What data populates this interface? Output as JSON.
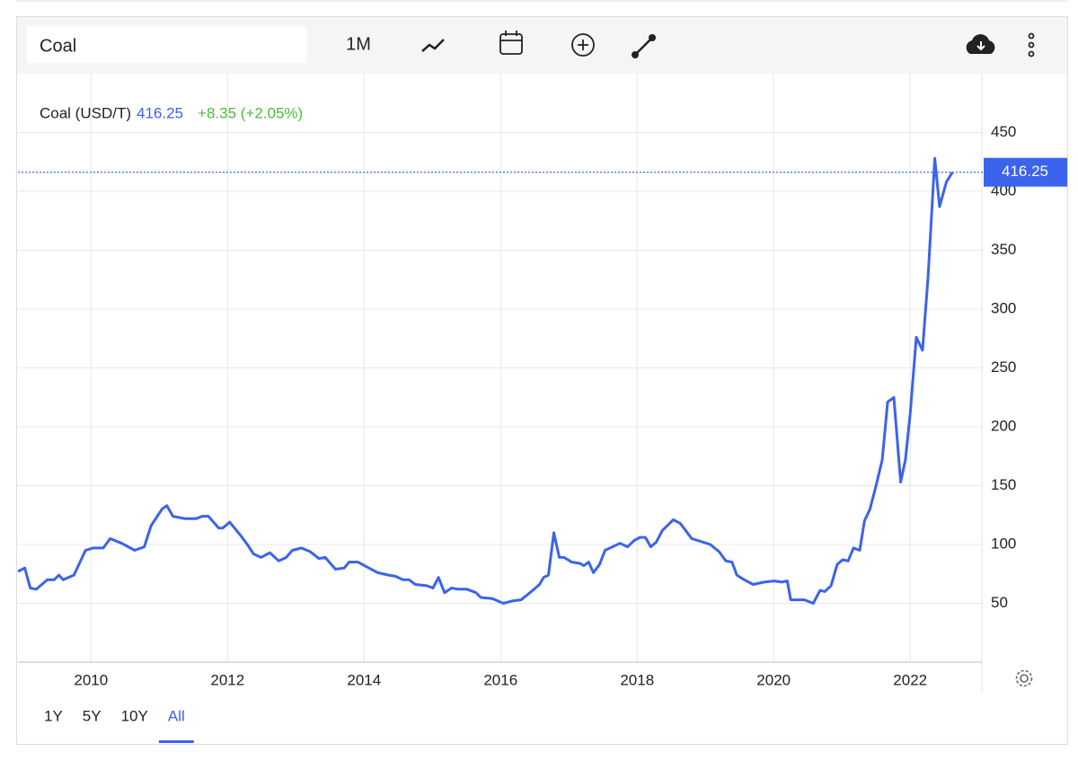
{
  "toolbar": {
    "symbol": "Coal",
    "interval": "1M"
  },
  "chart_data": {
    "type": "line",
    "change": "+8.35 (+2.05%)",
    "last_value": 416.25,
    "x": [
      2008.93,
      2009.03,
      2009.11,
      2009.2,
      2009.36,
      2009.46,
      2009.53,
      2009.59,
      2009.75,
      2009.92,
      2010.03,
      2010.18,
      2010.28,
      2010.45,
      2010.64,
      2010.78,
      2010.88,
      2011.04,
      2011.11,
      2011.2,
      2011.37,
      2011.54,
      2011.63,
      2011.72,
      2011.87,
      2011.93,
      2012.03,
      2012.2,
      2012.29,
      2012.38,
      2012.49,
      2012.62,
      2012.75,
      2012.86,
      2012.95,
      2013.08,
      2013.21,
      2013.34,
      2013.43,
      2013.58,
      2013.71,
      2013.78,
      2013.91,
      2014.07,
      2014.2,
      2014.36,
      2014.46,
      2014.57,
      2014.66,
      2014.75,
      2014.92,
      2015.01,
      2015.09,
      2015.18,
      2015.28,
      2015.38,
      2015.51,
      2015.64,
      2015.71,
      2015.88,
      2016.04,
      2016.17,
      2016.3,
      2016.43,
      2016.57,
      2016.63,
      2016.7,
      2016.78,
      2016.86,
      2016.93,
      2017.04,
      2017.16,
      2017.22,
      2017.29,
      2017.36,
      2017.45,
      2017.53,
      2017.75,
      2017.86,
      2017.95,
      2018.04,
      2018.12,
      2018.2,
      2018.28,
      2018.37,
      2018.53,
      2018.63,
      2018.71,
      2018.8,
      2018.91,
      2019.07,
      2019.2,
      2019.3,
      2019.39,
      2019.46,
      2019.57,
      2019.7,
      2019.86,
      2020.01,
      2020.12,
      2020.2,
      2020.25,
      2020.45,
      2020.58,
      2020.68,
      2020.75,
      2020.84,
      2020.93,
      2021.01,
      2021.09,
      2021.17,
      2021.26,
      2021.33,
      2021.41,
      2021.5,
      2021.59,
      2021.67,
      2021.76,
      2021.86,
      2021.93,
      2022.0,
      2022.09,
      2022.18,
      2022.26,
      2022.36,
      2022.43,
      2022.53,
      2022.62
    ],
    "series": [
      {
        "name": "Coal (USD/T)",
        "color": "#3b63ec",
        "values": [
          77,
          80,
          63,
          62,
          70,
          70,
          74,
          70,
          74,
          95,
          97,
          97,
          105,
          101,
          95,
          98,
          116,
          130,
          133,
          124,
          122,
          122,
          124,
          124,
          114,
          114,
          119,
          107,
          100,
          92,
          89,
          93,
          86,
          89,
          95,
          97,
          94,
          88,
          89,
          79,
          80,
          85,
          85,
          80,
          76,
          74,
          73,
          70,
          70,
          66,
          65,
          63,
          72,
          59,
          63,
          62,
          62,
          59,
          55,
          54,
          50,
          52,
          53,
          59,
          66,
          72,
          74,
          110,
          89,
          89,
          85,
          84,
          82,
          85,
          76,
          83,
          95,
          101,
          98,
          103,
          106,
          106,
          98,
          102,
          112,
          121,
          118,
          112,
          105,
          103,
          100,
          94,
          86,
          85,
          74,
          70,
          66,
          68,
          69,
          68,
          69,
          53,
          53,
          50,
          61,
          60,
          65,
          83,
          87,
          86,
          97,
          95,
          120,
          130,
          150,
          172,
          221,
          225,
          153,
          172,
          211,
          276,
          265,
          326,
          428,
          387,
          408,
          416.25
        ]
      }
    ],
    "xlim": [
      2008.93,
      2023.05
    ],
    "xticks": [
      2010,
      2012,
      2014,
      2016,
      2018,
      2020,
      2022
    ],
    "ylim": [
      0,
      500
    ],
    "yticks": [
      50,
      100,
      150,
      200,
      250,
      300,
      350,
      400,
      450
    ],
    "grid": true
  },
  "ranges": {
    "options": [
      "1Y",
      "5Y",
      "10Y",
      "All"
    ],
    "active": 3
  }
}
